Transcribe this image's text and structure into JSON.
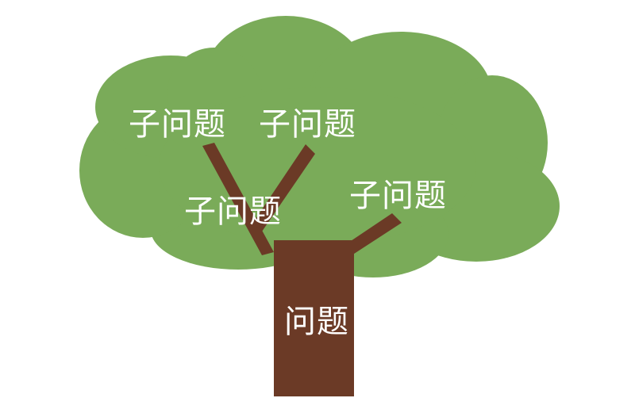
{
  "colors": {
    "canopy": "#7aab59",
    "trunk": "#6b3a26",
    "label_text": "#ffffff",
    "background": "#ffffff"
  },
  "root": {
    "label": "问题"
  },
  "sub_problems": [
    {
      "label": "子问题"
    },
    {
      "label": "子问题"
    },
    {
      "label": "子问题"
    },
    {
      "label": "子问题"
    }
  ]
}
